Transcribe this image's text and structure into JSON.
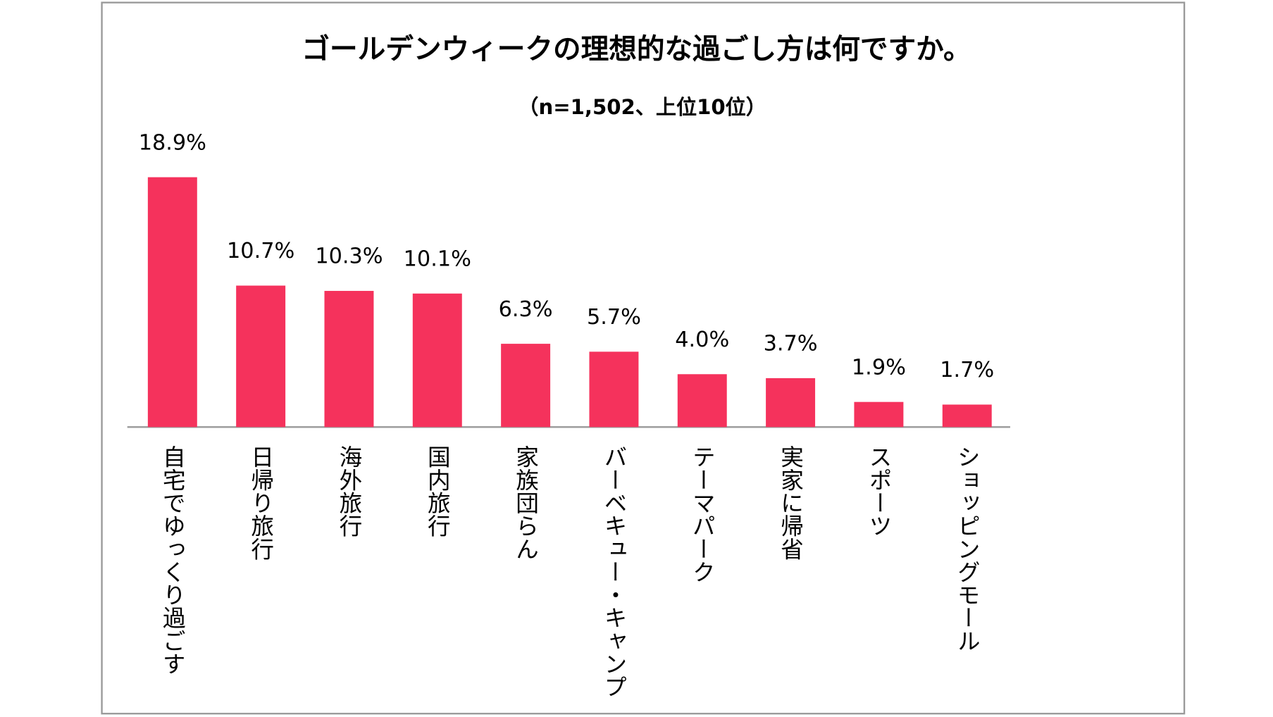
{
  "chart_data": {
    "type": "bar",
    "title": "ゴールデンウィークの理想的な過ごし方は何ですか。",
    "subtitle": "（n=1,502、上位10位）",
    "categories": [
      "自宅でゆっくり過ごす",
      "日帰り旅行",
      "海外旅行",
      "国内旅行",
      "家族団らん",
      "バーベキュー・キャンプ",
      "テーマパーク",
      "実家に帰省",
      "スポーツ",
      "ショッピングモール"
    ],
    "values": [
      18.9,
      10.7,
      10.3,
      10.1,
      6.3,
      5.7,
      4.0,
      3.7,
      1.9,
      1.7
    ],
    "value_labels": [
      "18.9%",
      "10.7%",
      "10.3%",
      "10.1%",
      "6.3%",
      "5.7%",
      "4.0%",
      "3.7%",
      "1.9%",
      "1.7%"
    ],
    "color": "#f5325c",
    "ylim": [
      0,
      20
    ],
    "grid": false
  }
}
